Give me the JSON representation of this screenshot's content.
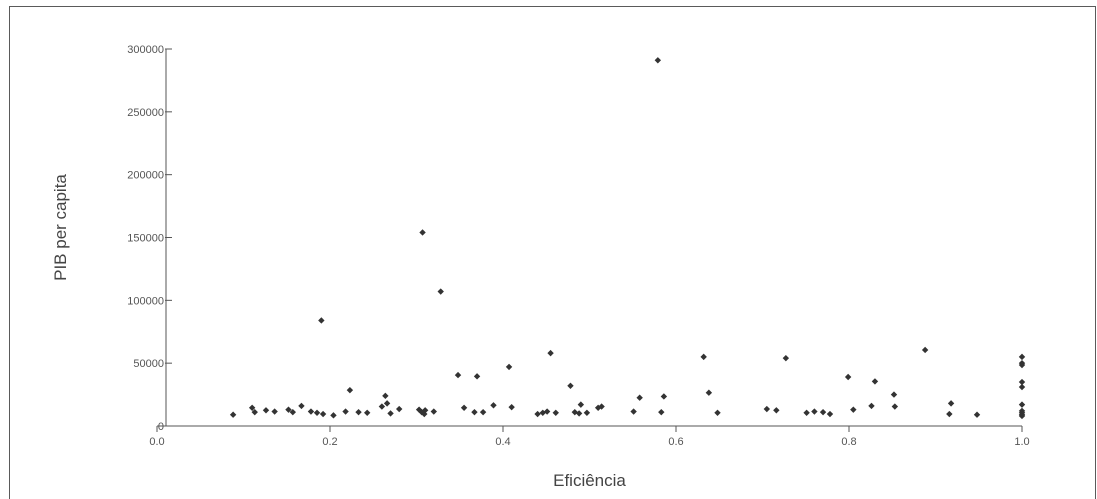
{
  "chart_data": {
    "type": "scatter",
    "title": "",
    "xlabel": "Eficiência",
    "ylabel": "PIB per capita",
    "xlim": [
      0,
      1.0
    ],
    "ylim": [
      0,
      300000
    ],
    "x_ticks": [
      "0.0",
      "0.2",
      "0.4",
      "0.6",
      "0.8",
      "1.0"
    ],
    "y_ticks": [
      "0",
      "50000",
      "100000",
      "150000",
      "200000",
      "250000",
      "300000"
    ],
    "grid": false,
    "marker_color": "#333333",
    "series": [
      {
        "points": [
          [
            0.088,
            9000
          ],
          [
            0.11,
            14500
          ],
          [
            0.113,
            11000
          ],
          [
            0.126,
            12500
          ],
          [
            0.136,
            11500
          ],
          [
            0.152,
            13000
          ],
          [
            0.157,
            11000
          ],
          [
            0.167,
            16000
          ],
          [
            0.178,
            11500
          ],
          [
            0.185,
            10500
          ],
          [
            0.19,
            84000
          ],
          [
            0.192,
            9500
          ],
          [
            0.204,
            8500
          ],
          [
            0.218,
            11500
          ],
          [
            0.223,
            28500
          ],
          [
            0.233,
            11000
          ],
          [
            0.243,
            10500
          ],
          [
            0.26,
            15500
          ],
          [
            0.264,
            24000
          ],
          [
            0.266,
            18000
          ],
          [
            0.27,
            10000
          ],
          [
            0.28,
            13500
          ],
          [
            0.303,
            13000
          ],
          [
            0.306,
            11000
          ],
          [
            0.307,
            154000
          ],
          [
            0.309,
            9500
          ],
          [
            0.31,
            12500
          ],
          [
            0.32,
            11500
          ],
          [
            0.328,
            107000
          ],
          [
            0.348,
            40500
          ],
          [
            0.355,
            14500
          ],
          [
            0.367,
            11000
          ],
          [
            0.37,
            39500
          ],
          [
            0.377,
            11000
          ],
          [
            0.389,
            16500
          ],
          [
            0.407,
            47000
          ],
          [
            0.41,
            15000
          ],
          [
            0.44,
            9500
          ],
          [
            0.446,
            10500
          ],
          [
            0.451,
            11500
          ],
          [
            0.455,
            58000
          ],
          [
            0.461,
            10500
          ],
          [
            0.478,
            32000
          ],
          [
            0.483,
            11000
          ],
          [
            0.488,
            10000
          ],
          [
            0.49,
            17000
          ],
          [
            0.497,
            10500
          ],
          [
            0.51,
            14500
          ],
          [
            0.514,
            15500
          ],
          [
            0.551,
            11500
          ],
          [
            0.558,
            22500
          ],
          [
            0.579,
            291000
          ],
          [
            0.583,
            11000
          ],
          [
            0.586,
            23500
          ],
          [
            0.632,
            55000
          ],
          [
            0.638,
            26500
          ],
          [
            0.648,
            10500
          ],
          [
            0.705,
            13500
          ],
          [
            0.716,
            12500
          ],
          [
            0.727,
            54000
          ],
          [
            0.751,
            10500
          ],
          [
            0.76,
            11500
          ],
          [
            0.77,
            11000
          ],
          [
            0.778,
            9500
          ],
          [
            0.799,
            39000
          ],
          [
            0.805,
            13000
          ],
          [
            0.826,
            16000
          ],
          [
            0.83,
            35500
          ],
          [
            0.852,
            25000
          ],
          [
            0.853,
            15500
          ],
          [
            0.888,
            60500
          ],
          [
            0.916,
            9500
          ],
          [
            0.918,
            18000
          ],
          [
            0.948,
            9000
          ],
          [
            1.0,
            55000
          ],
          [
            1.0,
            50000
          ],
          [
            1.0,
            48500
          ],
          [
            1.0,
            35000
          ],
          [
            1.0,
            31000
          ],
          [
            1.0,
            17000
          ],
          [
            1.0,
            12000
          ],
          [
            1.0,
            10500
          ],
          [
            1.0,
            9000
          ],
          [
            1.0,
            8000
          ]
        ]
      }
    ]
  }
}
